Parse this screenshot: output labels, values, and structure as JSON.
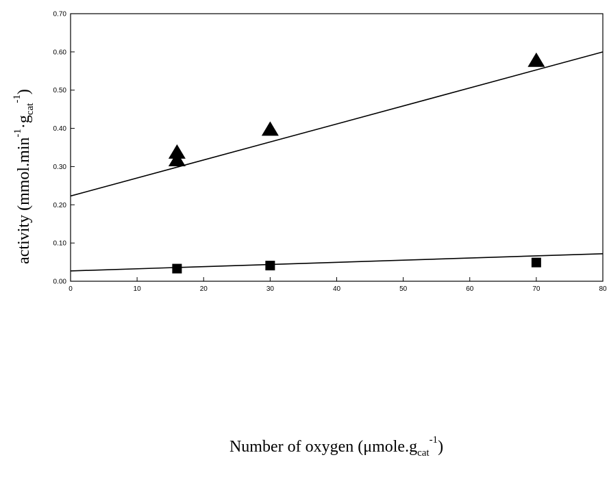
{
  "chart_data": {
    "type": "scatter",
    "xlabel": {
      "main": "Number of oxygen (μmole.g",
      "sub": "cat",
      "sup": "-1",
      "end": ")"
    },
    "ylabel": {
      "main": "activity (mmol.min",
      "sup1": "-1",
      "mid": "·g",
      "sub": "cat",
      "sup2": "-1",
      "end": ")"
    },
    "xlim": [
      0,
      80
    ],
    "ylim": [
      0,
      0.7
    ],
    "xticks": [
      {
        "v": 0,
        "label": "0"
      },
      {
        "v": 10,
        "label": "10"
      },
      {
        "v": 20,
        "label": "20"
      },
      {
        "v": 30,
        "label": "30"
      },
      {
        "v": 40,
        "label": "40"
      },
      {
        "v": 50,
        "label": "50"
      },
      {
        "v": 60,
        "label": "60"
      },
      {
        "v": 70,
        "label": "70"
      },
      {
        "v": 80,
        "label": "80"
      }
    ],
    "yticks": [
      {
        "v": 0,
        "label": "0.00"
      },
      {
        "v": 0.1,
        "label": "0.10"
      },
      {
        "v": 0.2,
        "label": "0.20"
      },
      {
        "v": 0.3,
        "label": "0.30"
      },
      {
        "v": 0.4,
        "label": "0.40"
      },
      {
        "v": 0.5,
        "label": "0.50"
      },
      {
        "v": 0.6,
        "label": "0.60"
      },
      {
        "v": 0.7,
        "label": "0.70"
      }
    ],
    "grid": false,
    "series": [
      {
        "marker": "triangle",
        "color": "#000000",
        "points": [
          [
            16,
            0.335
          ],
          [
            16,
            0.315
          ],
          [
            30,
            0.395
          ],
          [
            70,
            0.575
          ]
        ],
        "fit": [
          [
            0,
            0.223
          ],
          [
            80,
            0.6
          ]
        ]
      },
      {
        "marker": "square",
        "color": "#000000",
        "points": [
          [
            16,
            0.033
          ],
          [
            30,
            0.041
          ],
          [
            70,
            0.049
          ]
        ],
        "fit": [
          [
            0,
            0.027
          ],
          [
            80,
            0.072
          ]
        ]
      }
    ]
  }
}
